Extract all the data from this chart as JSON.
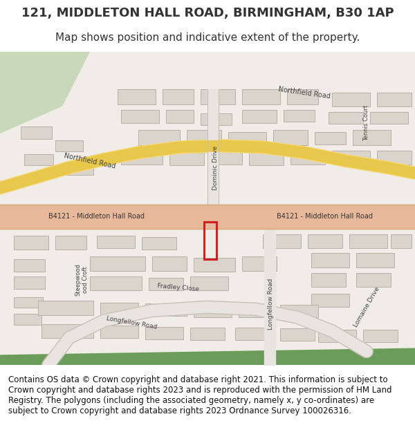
{
  "title": "121, MIDDLETON HALL ROAD, BIRMINGHAM, B30 1AP",
  "subtitle": "Map shows position and indicative extent of the property.",
  "footer": "Contains OS data © Crown copyright and database right 2021. This information is subject to Crown copyright and database rights 2023 and is reproduced with the permission of HM Land Registry. The polygons (including the associated geometry, namely x, y co-ordinates) are subject to Crown copyright and database rights 2023 Ordnance Survey 100026316.",
  "bg_color": "#f5f0eb",
  "map_bg": "#f0ede8",
  "road_color_main": "#e8b89a",
  "road_color_yellow": "#f5d87a",
  "road_outline": "#d4a882",
  "building_color": "#d9d4cc",
  "building_outline": "#b8b0a8",
  "green_area": "#c8d8b8",
  "green_stripe": "#6b9c5a",
  "highlight_color": "#cc2222",
  "text_color": "#333333",
  "footer_color": "#111111",
  "title_fontsize": 13,
  "subtitle_fontsize": 11,
  "footer_fontsize": 8.5
}
